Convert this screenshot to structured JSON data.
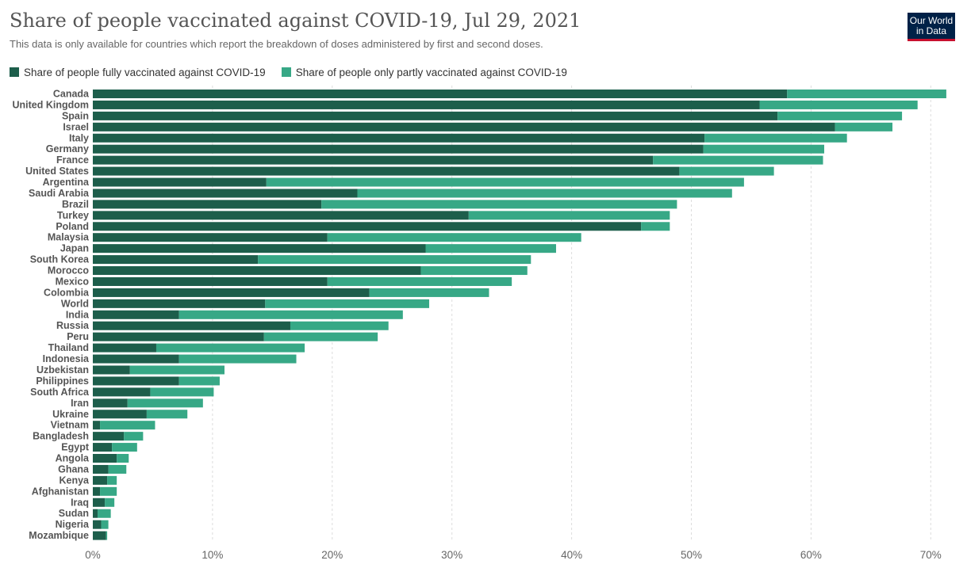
{
  "header": {
    "title": "Share of people vaccinated against COVID-19, Jul 29, 2021",
    "subtitle": "This data is only available for countries which report the breakdown of doses administered by first and second doses.",
    "logo_line1": "Our World",
    "logo_line2": "in Data"
  },
  "colors": {
    "fully": "#1d5e4b",
    "partly": "#37a886",
    "grid": "#dddddd",
    "logo_bg": "#002147",
    "logo_accent": "#c8102e"
  },
  "chart_data": {
    "type": "bar",
    "orientation": "horizontal",
    "stacked": true,
    "title": "Share of people vaccinated against COVID-19, Jul 29, 2021",
    "subtitle": "This data is only available for countries which report the breakdown of doses administered by first and second doses.",
    "legend_position": "top-left",
    "grid": true,
    "xlim": [
      0,
      72
    ],
    "x_ticks": [
      0,
      10,
      20,
      30,
      40,
      50,
      60,
      70
    ],
    "x_tick_labels": [
      "0%",
      "10%",
      "20%",
      "30%",
      "40%",
      "50%",
      "60%",
      "70%"
    ],
    "categories": [
      "Canada",
      "United Kingdom",
      "Spain",
      "Israel",
      "Italy",
      "Germany",
      "France",
      "United States",
      "Argentina",
      "Saudi Arabia",
      "Brazil",
      "Turkey",
      "Poland",
      "Malaysia",
      "Japan",
      "South Korea",
      "Morocco",
      "Mexico",
      "Colombia",
      "World",
      "India",
      "Russia",
      "Peru",
      "Thailand",
      "Indonesia",
      "Uzbekistan",
      "Philippines",
      "South Africa",
      "Iran",
      "Ukraine",
      "Vietnam",
      "Bangladesh",
      "Egypt",
      "Angola",
      "Ghana",
      "Kenya",
      "Afghanistan",
      "Iraq",
      "Sudan",
      "Nigeria",
      "Mozambique"
    ],
    "series": [
      {
        "name": "Share of people fully vaccinated against COVID-19",
        "values": [
          58.0,
          55.7,
          57.2,
          62.0,
          51.1,
          51.0,
          46.8,
          49.0,
          14.5,
          22.1,
          19.1,
          31.4,
          45.8,
          19.6,
          27.8,
          13.8,
          27.4,
          19.6,
          23.1,
          14.4,
          7.2,
          16.5,
          14.3,
          5.3,
          7.2,
          3.1,
          7.2,
          4.8,
          2.9,
          4.5,
          0.6,
          2.6,
          1.6,
          2.0,
          1.3,
          1.2,
          0.6,
          1.0,
          0.4,
          0.7,
          1.1
        ]
      },
      {
        "name": "Share of people only partly vaccinated against COVID-19",
        "values": [
          13.3,
          13.2,
          10.4,
          4.8,
          11.9,
          10.1,
          14.2,
          7.9,
          39.9,
          31.3,
          29.7,
          16.8,
          2.4,
          21.2,
          10.9,
          22.8,
          8.9,
          15.4,
          10.0,
          13.7,
          18.7,
          8.2,
          9.5,
          12.4,
          9.8,
          7.9,
          3.4,
          5.3,
          6.3,
          3.4,
          4.6,
          1.6,
          2.1,
          1.0,
          1.5,
          0.8,
          1.4,
          0.8,
          1.1,
          0.6,
          0.1
        ]
      }
    ],
    "xlabel": "",
    "ylabel": ""
  }
}
